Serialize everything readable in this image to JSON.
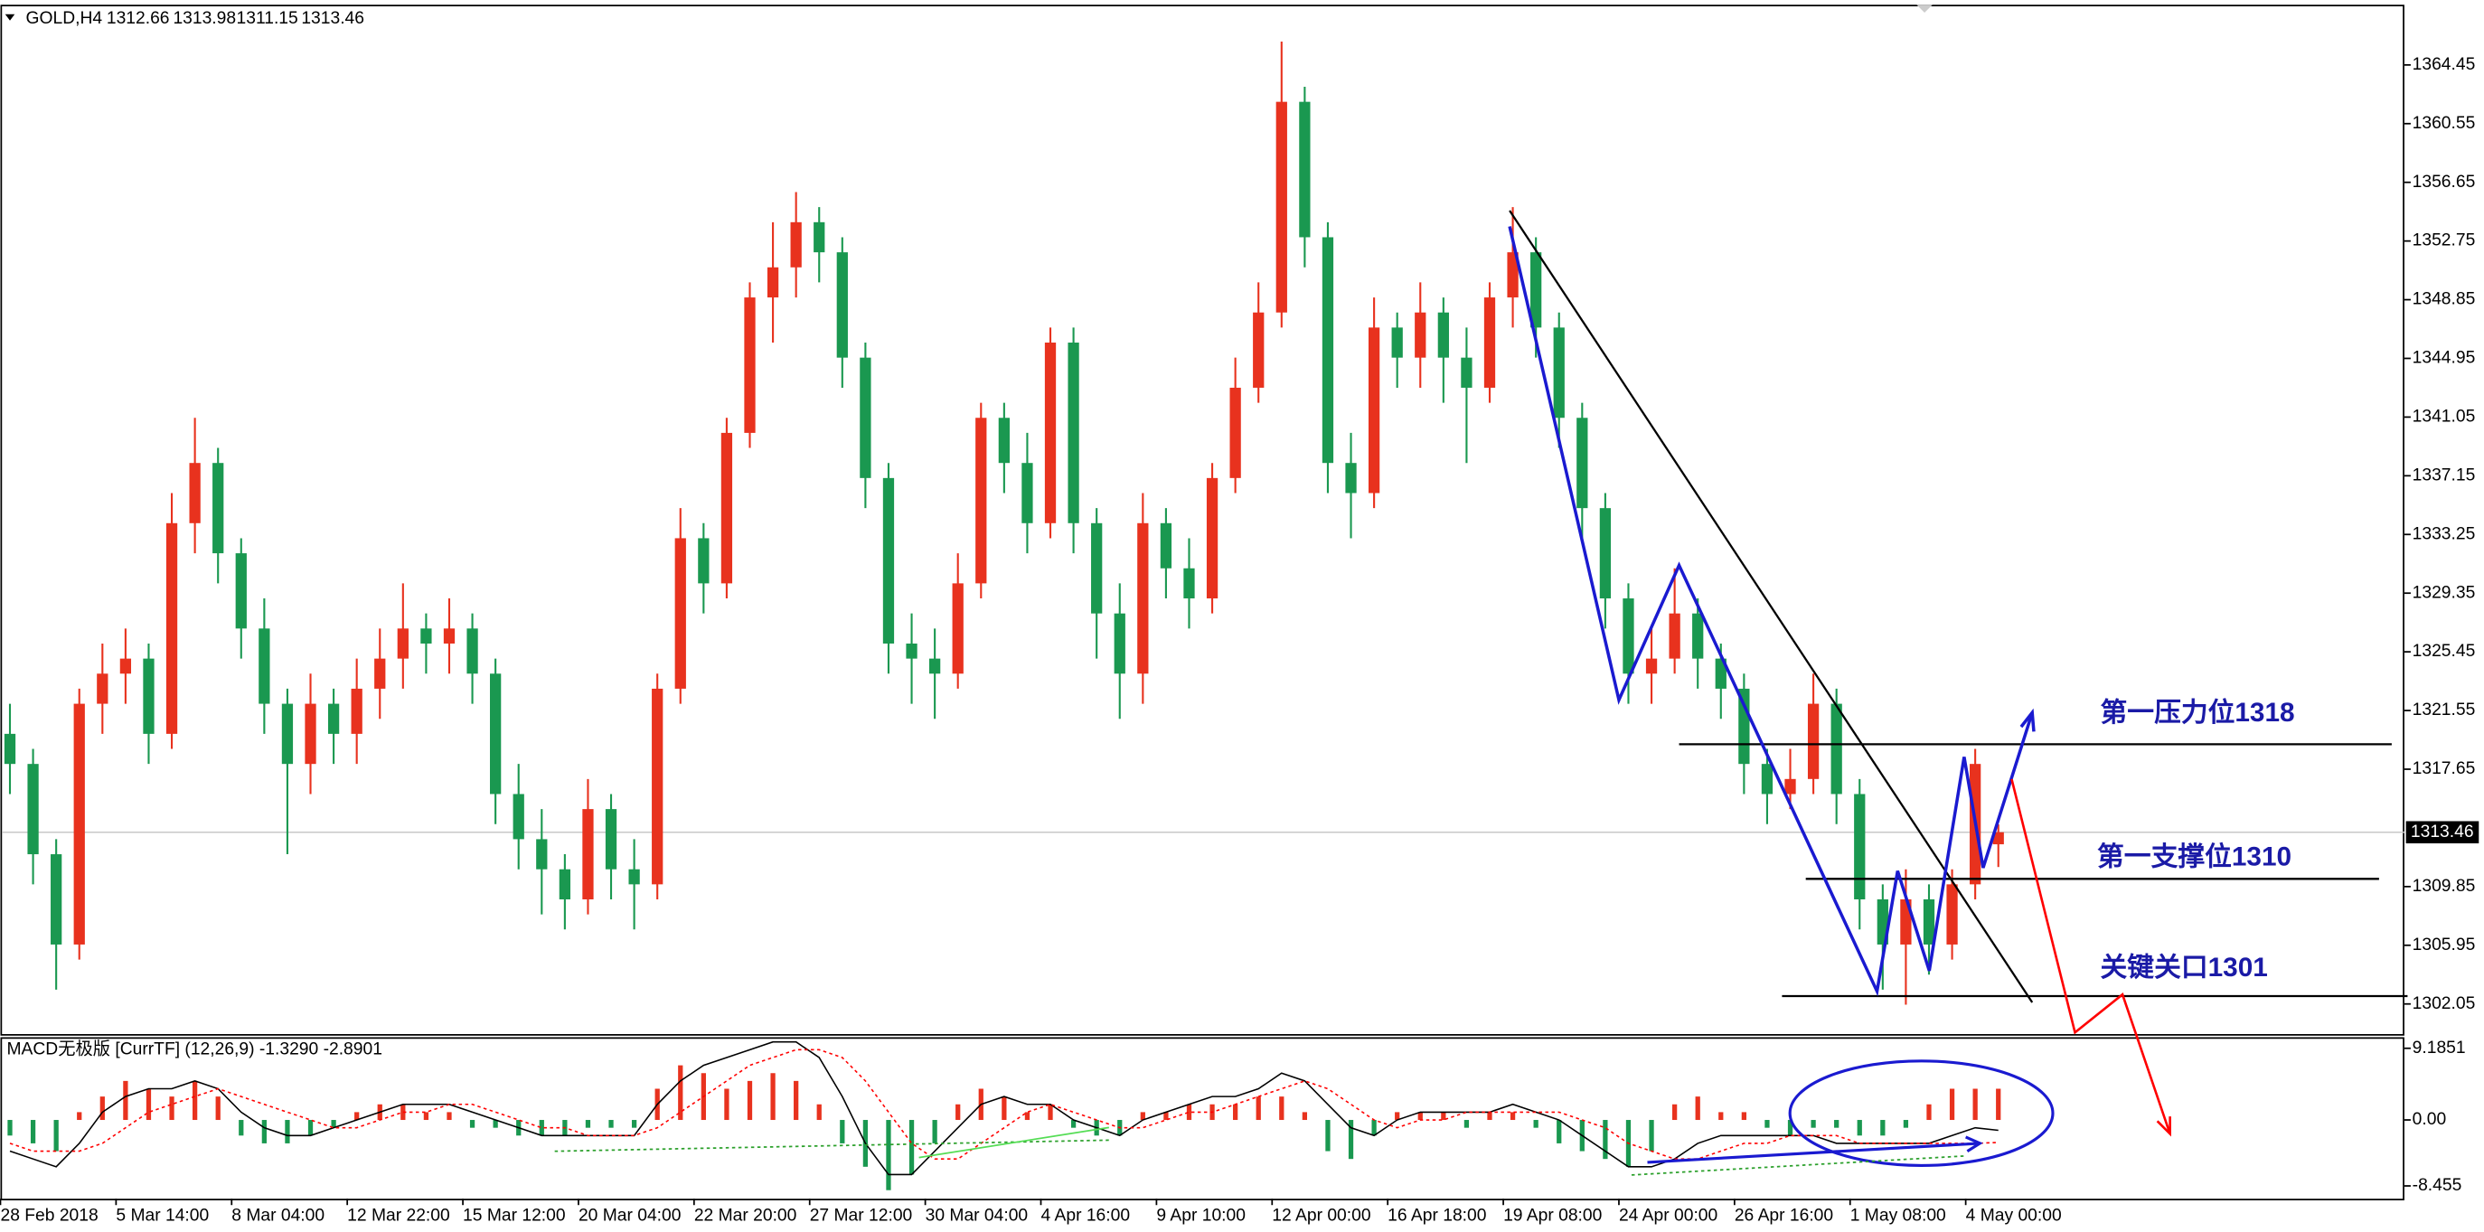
{
  "chart_data": [
    {
      "type": "candlestick",
      "symbol": "GOLD,H4",
      "categories": [
        "28 Feb 2018",
        null,
        null,
        null,
        null,
        "5 Mar 14:00",
        null,
        null,
        null,
        null,
        "8 Mar 04:00",
        null,
        null,
        null,
        null,
        "12 Mar 22:00",
        null,
        null,
        null,
        null,
        "15 Mar 12:00",
        null,
        null,
        null,
        null,
        "20 Mar 04:00",
        null,
        null,
        null,
        null,
        "22 Mar 20:00",
        null,
        null,
        null,
        null,
        "27 Mar 12:00",
        null,
        null,
        null,
        null,
        "30 Mar 04:00",
        null,
        null,
        null,
        null,
        "4 Apr 16:00",
        null,
        null,
        null,
        null,
        "9 Apr 10:00",
        null,
        null,
        null,
        null,
        "12 Apr 00:00",
        null,
        null,
        null,
        null,
        "16 Apr 18:00",
        null,
        null,
        null,
        null,
        "19 Apr 08:00",
        null,
        null,
        null,
        null,
        "24 Apr 00:00",
        null,
        null,
        null,
        null,
        "26 Apr 16:00",
        null,
        null,
        null,
        null,
        "1 May 08:00",
        null,
        null,
        null,
        null,
        "4 May 00:00",
        null
      ],
      "open": [
        1320,
        1318,
        1312,
        1306,
        1322,
        1324,
        1325,
        1320,
        1334,
        1338,
        1332,
        1327,
        1322,
        1318,
        1322,
        1320,
        1323,
        1325,
        1327,
        1326,
        1327,
        1324,
        1316,
        1313,
        1311,
        1309,
        1315,
        1311,
        1310,
        1323,
        1333,
        1330,
        1340,
        1349,
        1351,
        1354,
        1352,
        1345,
        1337,
        1326,
        1325,
        1324,
        1330,
        1341,
        1338,
        1334,
        1346,
        1334,
        1328,
        1324,
        1334,
        1331,
        1329,
        1337,
        1343,
        1348,
        1362,
        1353,
        1338,
        1336,
        1347,
        1345,
        1348,
        1345,
        1343,
        1349,
        1352,
        1347,
        1341,
        1335,
        1329,
        1324,
        1325,
        1328,
        1325,
        1323,
        1318,
        1316,
        1317,
        1322,
        1316,
        1309,
        1306,
        1309,
        1306,
        1310,
        1312.66
      ],
      "high": [
        1322,
        1319,
        1313,
        1323,
        1326,
        1327,
        1326,
        1336,
        1341,
        1339,
        1333,
        1329,
        1323,
        1324,
        1323,
        1325,
        1327,
        1330,
        1328,
        1329,
        1328,
        1325,
        1318,
        1315,
        1312,
        1317,
        1316,
        1313,
        1324,
        1335,
        1334,
        1341,
        1350,
        1354,
        1356,
        1355,
        1353,
        1346,
        1338,
        1328,
        1327,
        1332,
        1342,
        1342,
        1340,
        1347,
        1347,
        1335,
        1330,
        1336,
        1335,
        1333,
        1338,
        1345,
        1350,
        1366,
        1363,
        1354,
        1340,
        1349,
        1348,
        1350,
        1349,
        1347,
        1350,
        1355,
        1353,
        1348,
        1342,
        1336,
        1330,
        1327,
        1331,
        1329,
        1326,
        1324,
        1319,
        1319,
        1324,
        1323,
        1317,
        1310,
        1311,
        1310,
        1311,
        1319,
        1313.98
      ],
      "low": [
        1316,
        1310,
        1303,
        1305,
        1320,
        1322,
        1318,
        1319,
        1332,
        1330,
        1325,
        1320,
        1312,
        1316,
        1318,
        1318,
        1321,
        1323,
        1324,
        1324,
        1322,
        1314,
        1311,
        1308,
        1307,
        1308,
        1309,
        1307,
        1309,
        1322,
        1328,
        1329,
        1339,
        1346,
        1349,
        1350,
        1343,
        1335,
        1324,
        1322,
        1321,
        1323,
        1329,
        1336,
        1332,
        1333,
        1332,
        1325,
        1321,
        1322,
        1329,
        1327,
        1328,
        1336,
        1342,
        1347,
        1351,
        1336,
        1333,
        1335,
        1343,
        1343,
        1342,
        1338,
        1342,
        1347,
        1345,
        1339,
        1333,
        1327,
        1322,
        1322,
        1324,
        1323,
        1321,
        1316,
        1314,
        1315,
        1316,
        1314,
        1307,
        1303,
        1302,
        1304,
        1305,
        1309,
        1311.15
      ],
      "close": [
        1318,
        1312,
        1306,
        1322,
        1324,
        1325,
        1320,
        1334,
        1338,
        1332,
        1327,
        1322,
        1318,
        1322,
        1320,
        1323,
        1325,
        1327,
        1326,
        1327,
        1324,
        1316,
        1313,
        1311,
        1309,
        1315,
        1311,
        1310,
        1323,
        1333,
        1330,
        1340,
        1349,
        1351,
        1354,
        1352,
        1345,
        1337,
        1326,
        1325,
        1324,
        1330,
        1341,
        1338,
        1334,
        1346,
        1334,
        1328,
        1324,
        1334,
        1331,
        1329,
        1337,
        1343,
        1348,
        1362,
        1353,
        1338,
        1336,
        1347,
        1345,
        1348,
        1345,
        1343,
        1349,
        1352,
        1347,
        1341,
        1335,
        1329,
        1324,
        1325,
        1328,
        1325,
        1323,
        1318,
        1316,
        1317,
        1322,
        1316,
        1309,
        1306,
        1309,
        1306,
        1310,
        1318,
        1313.46
      ],
      "up_color": "#e8321e",
      "down_color": "#1a9850",
      "ylim": [
        1300.05,
        1368.45
      ],
      "yticks": [
        1364.45,
        1360.55,
        1356.65,
        1352.75,
        1348.85,
        1344.95,
        1341.05,
        1337.15,
        1333.25,
        1329.35,
        1325.45,
        1321.55,
        1317.65,
        1309.85,
        1305.95,
        1302.05
      ],
      "annotations": [
        "第一压力位1318",
        "第一支撑位1310",
        "关键关口1301"
      ]
    },
    {
      "type": "macd",
      "title": "MACD无极版 [CurrTF] (12,26,9) -1.3290 -2.8901",
      "histogram": [
        -2,
        -3,
        -4,
        1,
        3,
        5,
        4,
        3,
        5,
        3,
        -2,
        -3,
        -3,
        -2,
        -1,
        1,
        2,
        2,
        1,
        1,
        -1,
        -1,
        -2,
        -2,
        -2,
        -1,
        -1,
        -1,
        4,
        7,
        6,
        4,
        5,
        6,
        5,
        2,
        -3,
        -6,
        -9,
        -7,
        -3,
        2,
        4,
        3,
        1,
        2,
        -1,
        -2,
        -2,
        1,
        1,
        2,
        2,
        2,
        3,
        3,
        1,
        -4,
        -5,
        -2,
        1,
        1,
        1,
        -1,
        1,
        1,
        -1,
        -3,
        -4,
        -5,
        -6,
        -4,
        2,
        3,
        1,
        1,
        -1,
        -2,
        -1,
        -1,
        -2,
        -2,
        -1,
        2,
        4,
        4,
        4
      ],
      "macd": [
        -4,
        -5,
        -6,
        -3,
        1,
        3,
        4,
        4,
        5,
        4,
        1,
        -1,
        -2,
        -2,
        -1,
        0,
        1,
        2,
        2,
        2,
        1,
        0,
        -1,
        -2,
        -2,
        -2,
        -2,
        -2,
        2,
        5,
        7,
        8,
        9,
        10,
        10,
        8,
        3,
        -3,
        -7,
        -7,
        -4,
        -1,
        2,
        3,
        2,
        2,
        0,
        -1,
        -2,
        0,
        1,
        2,
        3,
        3,
        4,
        6,
        5,
        2,
        -1,
        -2,
        0,
        1,
        1,
        1,
        1,
        2,
        1,
        0,
        -2,
        -4,
        -6,
        -6,
        -5,
        -3,
        -2,
        -2,
        -2,
        -2,
        -2,
        -3,
        -3,
        -3,
        -3,
        -3,
        -2,
        -1,
        -1.329
      ],
      "signal": [
        -3,
        -4,
        -4,
        -4,
        -3,
        -1,
        1,
        2,
        3,
        4,
        3,
        2,
        1,
        0,
        -1,
        -1,
        0,
        1,
        1,
        2,
        2,
        1,
        0,
        -1,
        -1,
        -2,
        -2,
        -2,
        -1,
        1,
        3,
        5,
        7,
        8,
        9,
        9,
        8,
        5,
        1,
        -3,
        -5,
        -5,
        -3,
        -1,
        1,
        2,
        1,
        0,
        -1,
        -1,
        0,
        1,
        1,
        2,
        3,
        4,
        5,
        4,
        2,
        0,
        -1,
        0,
        0,
        1,
        1,
        1,
        1,
        1,
        0,
        -1,
        -3,
        -4,
        -5,
        -5,
        -4,
        -3,
        -3,
        -2,
        -2,
        -2,
        -3,
        -3,
        -3,
        -3,
        -3,
        -3,
        -2.8901
      ],
      "up_color": "#e8321e",
      "down_color": "#1a9850",
      "macd_color": "#000000",
      "signal_color": "#ff0000",
      "ylim": [
        -10.1,
        10.4
      ],
      "yticks": [
        9.1851,
        {
          "value": 0,
          "label": "0.00"
        },
        -8.455
      ]
    }
  ]
}
